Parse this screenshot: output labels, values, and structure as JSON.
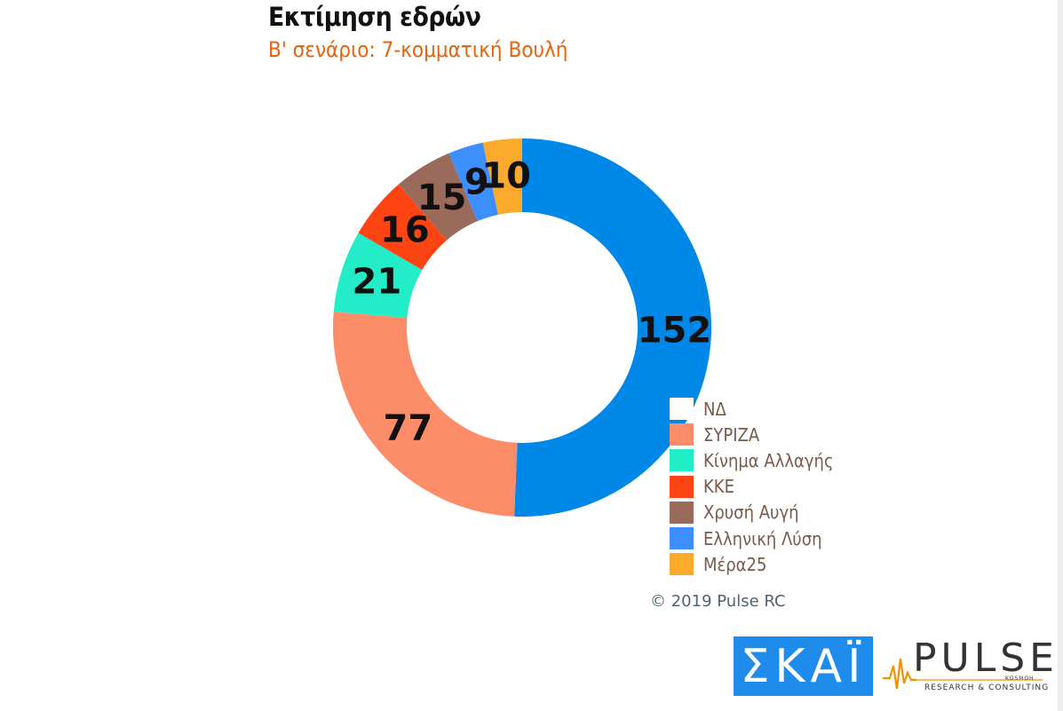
{
  "chart_data": {
    "type": "pie",
    "variant": "donut",
    "title": "Εκτίμηση εδρών",
    "subtitle": "Β' σενάριο: 7-κομματική Βουλή",
    "categories": [
      "ΝΔ",
      "ΣΥΡΙΖΑ",
      "Κίνημα Αλλαγής",
      "ΚΚΕ",
      "Χρυσή Αυγή",
      "Ελληνική Λύση",
      "Μέρα25"
    ],
    "values": [
      152,
      77,
      21,
      16,
      15,
      9,
      10
    ],
    "colors": [
      "#0088e8",
      "#fd8c69",
      "#23edc8",
      "#ff4414",
      "#9a6b5b",
      "#3d8eff",
      "#fbaa2c"
    ],
    "legend_position": "bottom-right",
    "grid": false
  },
  "copyright": "© 2019 Pulse RC",
  "logos": {
    "skai": "ΣΚΑΪ",
    "pulse": "PULSE",
    "pulse_tagline": "RESEARCH & CONSULTING",
    "pulse_kosmos": "KOSMOH"
  }
}
